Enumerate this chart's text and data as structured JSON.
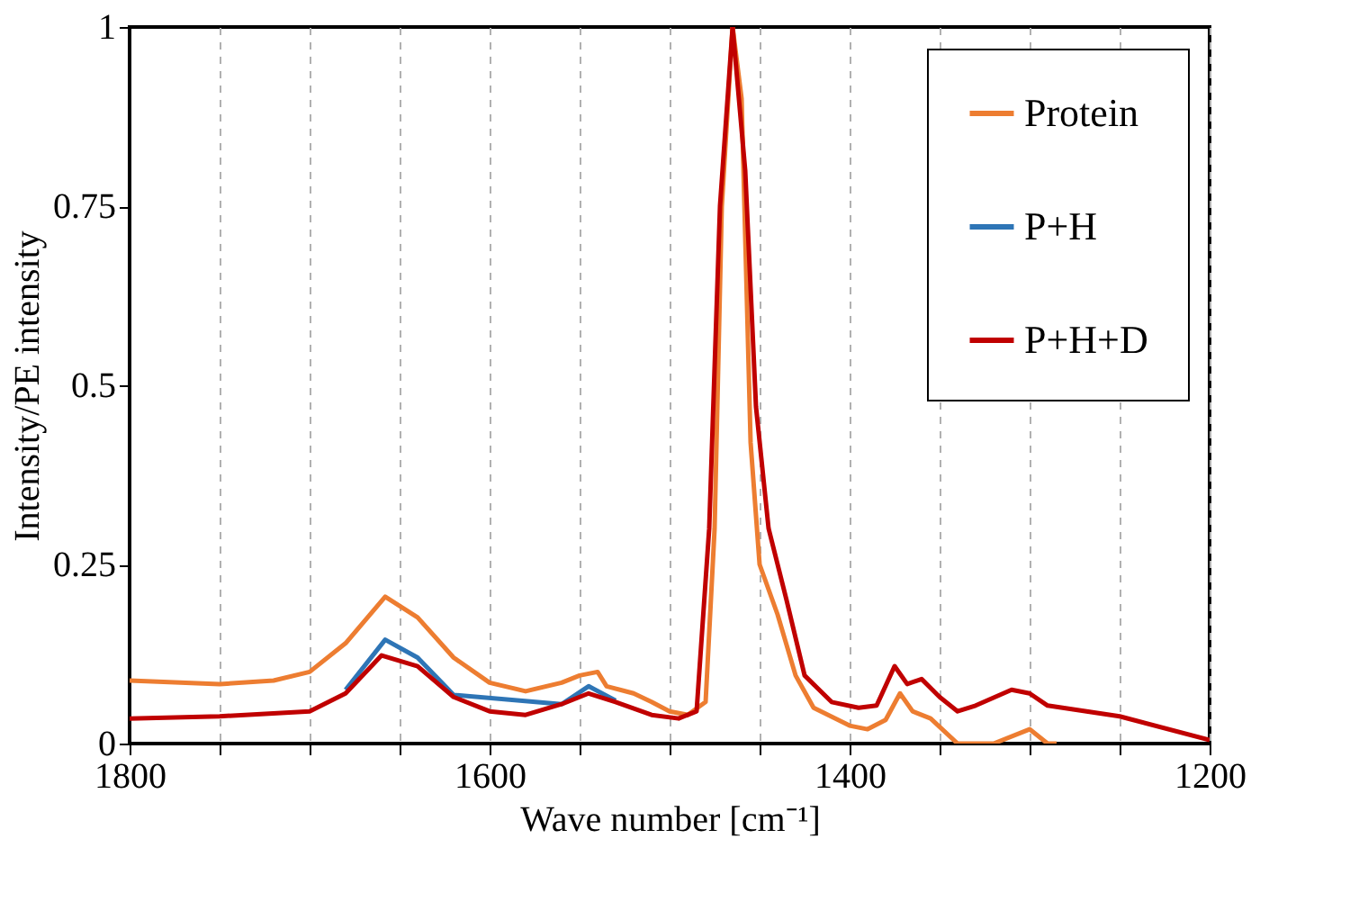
{
  "chart_data": {
    "type": "line",
    "xlabel": "Wave number [cm⁻¹]",
    "ylabel": "Intensity/PE intensity",
    "xlim": [
      1800,
      1200
    ],
    "ylim": [
      0,
      1
    ],
    "xticks": [
      1800,
      {
        "value": 1750,
        "label": null
      },
      {
        "value": 1700,
        "label": null
      },
      {
        "value": 1650,
        "label": null
      },
      1600,
      {
        "value": 1550,
        "label": null
      },
      {
        "value": 1500,
        "label": null
      },
      {
        "value": 1450,
        "label": null
      },
      1400,
      {
        "value": 1350,
        "label": null
      },
      {
        "value": 1300,
        "label": null
      },
      {
        "value": 1250,
        "label": null
      },
      1200
    ],
    "yticks": [
      0,
      0.25,
      0.5,
      0.75,
      1
    ],
    "grid": "x",
    "legend": "top right",
    "marker": "none",
    "line_style": "solid",
    "series": [
      {
        "name": "Protein",
        "color": "#ed7d31",
        "x": [
          1800,
          1750,
          1720,
          1700,
          1680,
          1658,
          1640,
          1620,
          1600,
          1580,
          1560,
          1550,
          1540,
          1535,
          1520,
          1510,
          1500,
          1490,
          1480,
          1475,
          1471,
          1465,
          1460,
          1455,
          1450,
          1440,
          1430,
          1420,
          1400,
          1390,
          1380,
          1372,
          1365,
          1355,
          1340,
          1320,
          1300,
          1290,
          1285
        ],
        "values": [
          0.088,
          0.083,
          0.088,
          0.1,
          0.14,
          0.205,
          0.176,
          0.12,
          0.085,
          0.073,
          0.085,
          0.095,
          0.1,
          0.08,
          0.07,
          0.058,
          0.045,
          0.04,
          0.058,
          0.3,
          0.75,
          1.0,
          0.9,
          0.42,
          0.25,
          0.18,
          0.095,
          0.05,
          0.025,
          0.02,
          0.033,
          0.07,
          0.045,
          0.035,
          0.0,
          0.0,
          0.02,
          0.0,
          0.0
        ]
      },
      {
        "name": "P+H",
        "color": "#2e75b6",
        "x": [
          1680,
          1658,
          1640,
          1620,
          1560,
          1545,
          1530
        ],
        "values": [
          0.075,
          0.145,
          0.12,
          0.068,
          0.055,
          0.08,
          0.06
        ]
      },
      {
        "name": "P+H+D",
        "color": "#c00000",
        "x": [
          1800,
          1750,
          1700,
          1680,
          1660,
          1640,
          1620,
          1600,
          1580,
          1560,
          1545,
          1530,
          1510,
          1495,
          1485,
          1478,
          1472,
          1465,
          1458,
          1452,
          1445,
          1435,
          1425,
          1410,
          1395,
          1385,
          1375,
          1368,
          1360,
          1350,
          1340,
          1330,
          1310,
          1300,
          1290,
          1250,
          1200
        ],
        "values": [
          0.035,
          0.038,
          0.045,
          0.07,
          0.123,
          0.108,
          0.065,
          0.045,
          0.04,
          0.055,
          0.07,
          0.058,
          0.04,
          0.035,
          0.045,
          0.3,
          0.75,
          1.0,
          0.8,
          0.47,
          0.3,
          0.2,
          0.095,
          0.058,
          0.05,
          0.053,
          0.108,
          0.083,
          0.09,
          0.065,
          0.045,
          0.053,
          0.075,
          0.07,
          0.053,
          0.038,
          0.005
        ]
      }
    ]
  }
}
